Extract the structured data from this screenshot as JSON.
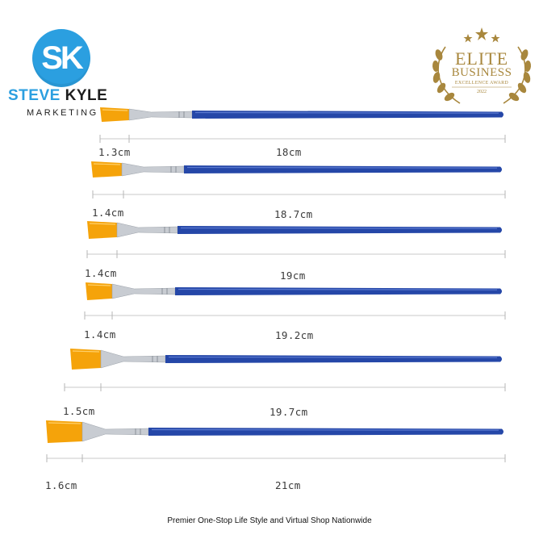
{
  "logo": {
    "monogram": "SK",
    "brand_first": "STEVE",
    "brand_rest": "KYLE",
    "subtitle": "MARKETING",
    "circle_color": "#2b9fe0"
  },
  "award": {
    "line1": "ELITE",
    "line2": "BUSINESS",
    "line3": "EXCELLENCE AWARD",
    "year": "2022",
    "color": "#a8873d"
  },
  "brushes": [
    {
      "head_size": "1.3cm",
      "length": "18cm"
    },
    {
      "head_size": "1.4cm",
      "length": "18.7cm"
    },
    {
      "head_size": "1.4cm",
      "length": "19cm"
    },
    {
      "head_size": "1.4cm",
      "length": "19.2cm"
    },
    {
      "head_size": "1.5cm",
      "length": "19.7cm"
    },
    {
      "head_size": "1.6cm",
      "length": "21cm"
    }
  ],
  "colors": {
    "handle": "#2547a8",
    "bristle": "#f5a30a",
    "ferrule": "#c8ccd2"
  },
  "footer": {
    "tagline": "Premier One-Stop Life Style and Virtual Shop Nationwide"
  }
}
